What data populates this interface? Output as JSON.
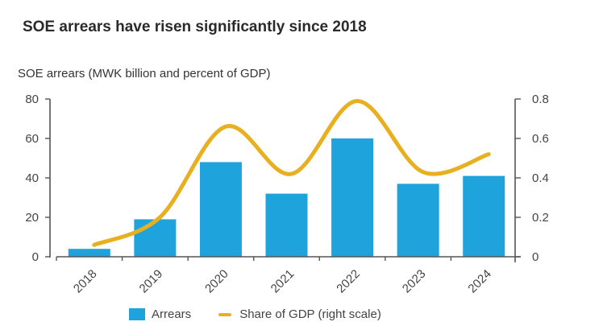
{
  "chart_data": {
    "type": "bar",
    "title": "SOE arrears have risen significantly since 2018",
    "subtitle": "SOE arrears (MWK billion and percent of GDP)",
    "categories": [
      "2018",
      "2019",
      "2020",
      "2021",
      "2022",
      "2023",
      "2024"
    ],
    "series": [
      {
        "name": "Arrears",
        "type": "bar",
        "axis": "left",
        "color": "#1fa3dc",
        "values": [
          4,
          19,
          48,
          32,
          60,
          37,
          41
        ]
      },
      {
        "name": "Share of GDP (right scale)",
        "type": "line",
        "axis": "right",
        "color": "#e8b020",
        "smooth": true,
        "values": [
          0.06,
          0.2,
          0.66,
          0.42,
          0.79,
          0.43,
          0.52
        ]
      }
    ],
    "y_left": {
      "ticks": [
        "0",
        "20",
        "40",
        "60",
        "80"
      ],
      "lim": [
        0,
        80
      ]
    },
    "y_right": {
      "ticks": [
        "0",
        "0.2",
        "0.4",
        "0.6",
        "0.8"
      ],
      "lim": [
        0,
        0.8
      ]
    },
    "xlabel": "",
    "ylabel": "",
    "grid": false,
    "legend_position": "bottom"
  }
}
